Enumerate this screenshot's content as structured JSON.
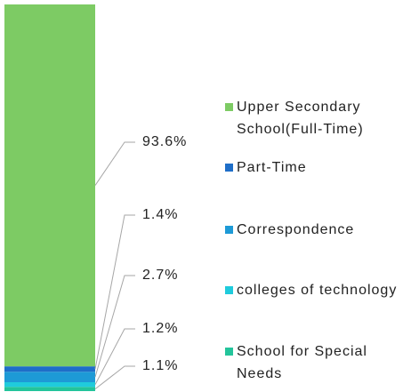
{
  "chart_data": {
    "type": "bar",
    "stacked": true,
    "ylim": [
      0,
      100
    ],
    "series": [
      {
        "name": "Upper Secondary School(Full-Time)",
        "color": "#7dcb64",
        "values": [
          93.6
        ],
        "value_labels": [
          "93.6%"
        ]
      },
      {
        "name": "Part-Time",
        "color": "#1e6ec8",
        "values": [
          1.4
        ],
        "value_labels": [
          "1.4%"
        ]
      },
      {
        "name": "Correspondence",
        "color": "#1d9ad6",
        "values": [
          2.7
        ],
        "value_labels": [
          "2.7%"
        ]
      },
      {
        "name": "colleges of technology",
        "color": "#1fcbdc",
        "values": [
          1.2
        ],
        "value_labels": [
          "1.2%"
        ]
      },
      {
        "name": "School for Special Needs",
        "color": "#23c49b",
        "values": [
          1.1
        ],
        "value_labels": [
          "1.1%"
        ]
      }
    ]
  }
}
